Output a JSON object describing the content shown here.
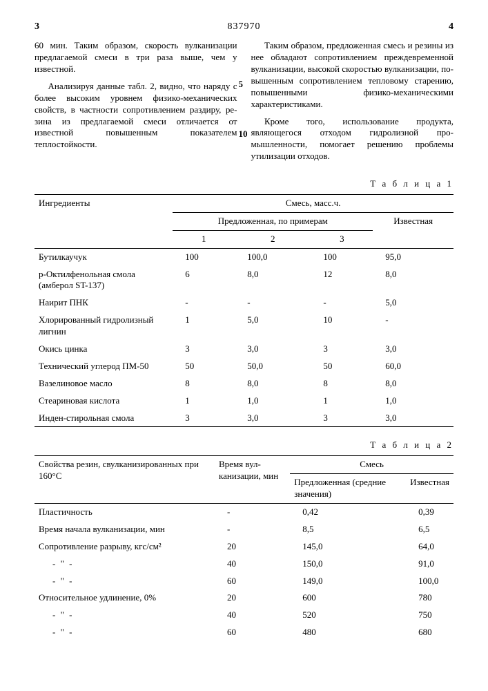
{
  "header": {
    "left_page": "3",
    "doc_number": "837970",
    "right_page": "4"
  },
  "left_col": {
    "p1": "60 мин. Таким образом, скорость вул­канизации предлагаемой смеси в три раза выше, чем у известной.",
    "p2": "Анализируя данные табл. 2, видно, что наряду с более высоким уровнем физико-механических свойств, в ча­стности сопротивлением раздиру, ре­зина из предлагаемой смеси отлича­ется от известной повышенным показа­телем теплостойкости."
  },
  "right_col": {
    "p1": "Таким образом, предложенная смесь и резины из нее обладают сопротивле­нием преждевременной вулканизации, высокой скоростью вулканизации, по­вышенным сопротивлением тепловому старению, повышенными физико-механи­ческими характеристиками.",
    "p2": "Кроме того, использование продукта, являющегося отходом гидролизной про­мышленности, помогает решению проб­лемы утилизации отходов."
  },
  "margin_nums": {
    "n5": "5",
    "n10": "10"
  },
  "table1": {
    "label": "Т а б л и ц а 1",
    "head": {
      "ingr": "Ингредиенты",
      "mix": "Смесь, масс.ч.",
      "proposed": "Предложенная, по примерам",
      "known": "Известная",
      "c1": "1",
      "c2": "2",
      "c3": "3"
    },
    "rows": [
      {
        "name": "Бутилкаучук",
        "v1": "100",
        "v2": "100,0",
        "v3": "100",
        "v4": "95,0"
      },
      {
        "name": "p-Октилфенольная смола (амберол ST-137)",
        "v1": "6",
        "v2": "8,0",
        "v3": "12",
        "v4": "8,0"
      },
      {
        "name": "Наирит ПНК",
        "v1": "-",
        "v2": "-",
        "v3": "-",
        "v4": "5,0"
      },
      {
        "name": "Хлорированный гидро­лизный лигнин",
        "v1": "1",
        "v2": "5,0",
        "v3": "10",
        "v4": "-"
      },
      {
        "name": "Окись цинка",
        "v1": "3",
        "v2": "3,0",
        "v3": "3",
        "v4": "3,0"
      },
      {
        "name": "Технический угле­род ПМ-50",
        "v1": "50",
        "v2": "50,0",
        "v3": "50",
        "v4": "60,0"
      },
      {
        "name": "Вазелиновое масло",
        "v1": "8",
        "v2": "8,0",
        "v3": "8",
        "v4": "8,0"
      },
      {
        "name": "Стеариновая кислота",
        "v1": "1",
        "v2": "1,0",
        "v3": "1",
        "v4": "1,0"
      },
      {
        "name": "Инден-стирольная смола",
        "v1": "3",
        "v2": "3,0",
        "v3": "3",
        "v4": "3,0"
      }
    ]
  },
  "table2": {
    "label": "Т а б л и ц а 2",
    "head": {
      "prop": "Свойства резин, свулканизиро­ванных при 160°С",
      "time": "Время вул­канизации, мин",
      "mix": "Смесь",
      "proposed": "Предложенная (средние зна­чения)",
      "known": "Известная"
    },
    "rows": [
      {
        "name": "Пластичность",
        "t": "-",
        "v1": "0,42",
        "v2": "0,39"
      },
      {
        "name": "Время начала вулканизации, мин",
        "t": "-",
        "v1": "8,5",
        "v2": "6,5"
      },
      {
        "name": "Сопротивление разрыву, кгс/см²",
        "t": "20",
        "v1": "145,0",
        "v2": "64,0"
      },
      {
        "name": "- \" -",
        "t": "40",
        "v1": "150,0",
        "v2": "91,0",
        "ditto": true
      },
      {
        "name": "- \" -",
        "t": "60",
        "v1": "149,0",
        "v2": "100,0",
        "ditto": true
      },
      {
        "name": "Относительное удлинение, 0%",
        "t": "20",
        "v1": "600",
        "v2": "780"
      },
      {
        "name": "- \" -",
        "t": "40",
        "v1": "520",
        "v2": "750",
        "ditto": true
      },
      {
        "name": "- \" -",
        "t": "60",
        "v1": "480",
        "v2": "680",
        "ditto": true
      }
    ]
  }
}
